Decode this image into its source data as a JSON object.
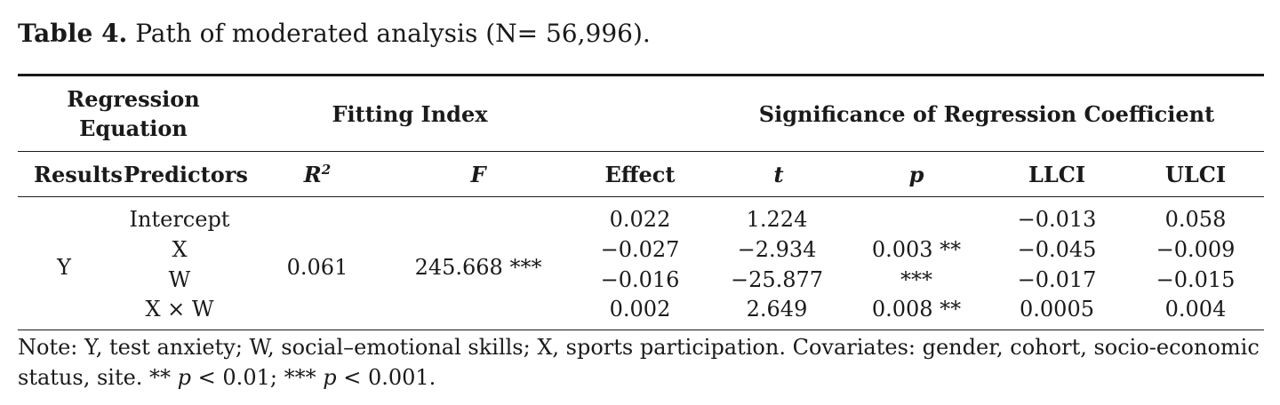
{
  "caption": {
    "label": "Table 4.",
    "text": " Path of moderated analysis (N= 56,996)."
  },
  "header": {
    "group_regression_line1": "Regression",
    "group_regression_line2": "Equation",
    "group_fitting": "Fitting Index",
    "group_significance": "Significance of Regression Coefficient",
    "col_results": "Results",
    "col_predictors": "Predictors",
    "col_r_base": "R",
    "col_r_sup": "2",
    "col_f": "F",
    "col_effect": "Effect",
    "col_t": "t",
    "col_p": "p",
    "col_llci": "LLCI",
    "col_ulci": "ULCI"
  },
  "body": {
    "result": "Y",
    "r2": "0.061",
    "f": "245.668 ***",
    "rows": [
      {
        "predictor": "Intercept",
        "effect": "0.022",
        "t": "1.224",
        "p": "",
        "llci": "−0.013",
        "ulci": "0.058"
      },
      {
        "predictor": "X",
        "effect": "−0.027",
        "t": "−2.934",
        "p": "0.003 **",
        "llci": "−0.045",
        "ulci": "−0.009"
      },
      {
        "predictor": "W",
        "effect": "−0.016",
        "t": "−25.877",
        "p": "***",
        "llci": "−0.017",
        "ulci": "−0.015"
      },
      {
        "predictor": "X × W",
        "effect": "0.002",
        "t": "2.649",
        "p": "0.008 **",
        "llci": "0.0005",
        "ulci": "0.004"
      }
    ]
  },
  "note": {
    "line1": "Note: Y, test anxiety; W, social–emotional skills; X, sports participation. Covariates: gender, cohort, socio-economic",
    "line2_a": "status, site. ** ",
    "line2_p1": "p",
    "line2_b": " < 0.01; *** ",
    "line2_p2": "p",
    "line2_c": " < 0.001."
  }
}
